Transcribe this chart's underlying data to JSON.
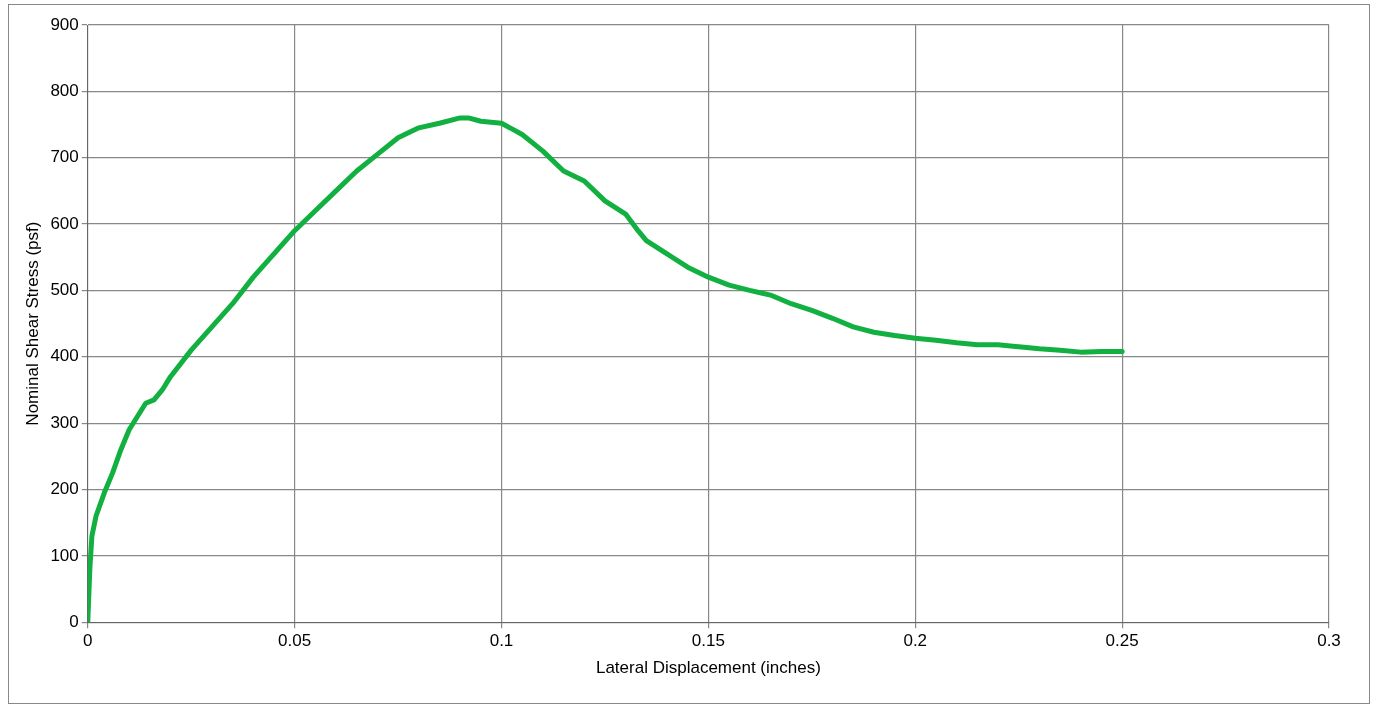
{
  "chart_data": {
    "type": "line",
    "xlabel": "Lateral Displacement (inches)",
    "ylabel": "Nominal Shear Stress (psf)",
    "x": [
      0,
      0.0005,
      0.001,
      0.002,
      0.004,
      0.006,
      0.008,
      0.01,
      0.012,
      0.014,
      0.016,
      0.018,
      0.02,
      0.025,
      0.03,
      0.035,
      0.04,
      0.045,
      0.05,
      0.055,
      0.06,
      0.065,
      0.07,
      0.075,
      0.08,
      0.085,
      0.09,
      0.092,
      0.095,
      0.1,
      0.105,
      0.11,
      0.115,
      0.12,
      0.125,
      0.13,
      0.133,
      0.135,
      0.14,
      0.145,
      0.15,
      0.155,
      0.16,
      0.165,
      0.17,
      0.175,
      0.18,
      0.185,
      0.19,
      0.195,
      0.2,
      0.205,
      0.21,
      0.215,
      0.22,
      0.225,
      0.23,
      0.235,
      0.24,
      0.245,
      0.25
    ],
    "series": [
      {
        "color": "#12b040",
        "values": [
          0,
          80,
          130,
          160,
          195,
          225,
          260,
          290,
          310,
          330,
          335,
          350,
          370,
          410,
          445,
          480,
          520,
          555,
          590,
          620,
          650,
          680,
          705,
          730,
          745,
          752,
          760,
          760,
          755,
          752,
          735,
          710,
          680,
          665,
          635,
          615,
          590,
          575,
          555,
          535,
          520,
          508,
          500,
          493,
          480,
          470,
          458,
          445,
          437,
          432,
          428,
          425,
          421,
          418,
          418,
          415,
          412,
          410,
          407,
          408,
          408
        ]
      }
    ],
    "xlim": [
      0,
      0.3
    ],
    "xticks": [
      0,
      0.05,
      0.1,
      0.15,
      0.2,
      0.25,
      0.3
    ],
    "ylim": [
      0,
      900
    ],
    "yticks": [
      0,
      100,
      200,
      300,
      400,
      500,
      600,
      700,
      800,
      900
    ],
    "grid": true,
    "legend": false,
    "marker": "none",
    "line_style": "solid"
  }
}
